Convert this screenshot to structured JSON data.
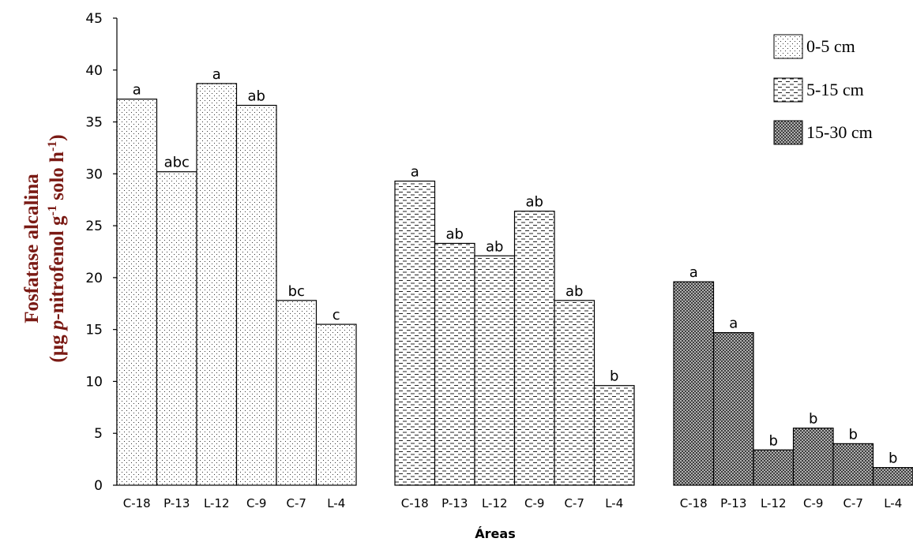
{
  "chart_data": {
    "type": "bar",
    "xlabel": "Áreas",
    "ylabel_line1": "Fosfatase alcalina",
    "ylabel_line2_parts": [
      "(µg ",
      "p",
      "-nitrofenol g",
      "-1",
      " solo h",
      "-1",
      ")"
    ],
    "ylim": [
      0,
      45
    ],
    "yticks": [
      0,
      5,
      10,
      15,
      20,
      25,
      30,
      35,
      40,
      45
    ],
    "categories": [
      "C-18",
      "P-13",
      "L-12",
      "C-9",
      "C-7",
      "L-4"
    ],
    "legend_position": "top-right",
    "series": [
      {
        "name": "0-5 cm",
        "pattern": "dots",
        "values": [
          37.2,
          30.2,
          38.7,
          36.6,
          17.8,
          15.5
        ],
        "labels": [
          "a",
          "abc",
          "a",
          "ab",
          "bc",
          "c"
        ]
      },
      {
        "name": "5-15 cm",
        "pattern": "dashes",
        "values": [
          29.3,
          23.3,
          22.1,
          26.4,
          17.8,
          9.6
        ],
        "labels": [
          "a",
          "ab",
          "ab",
          "ab",
          "ab",
          "b"
        ]
      },
      {
        "name": "15-30 cm",
        "pattern": "crosshatch",
        "values": [
          19.6,
          14.7,
          3.4,
          5.5,
          4.0,
          1.7
        ],
        "labels": [
          "a",
          "a",
          "b",
          "b",
          "b",
          "b"
        ]
      }
    ]
  }
}
